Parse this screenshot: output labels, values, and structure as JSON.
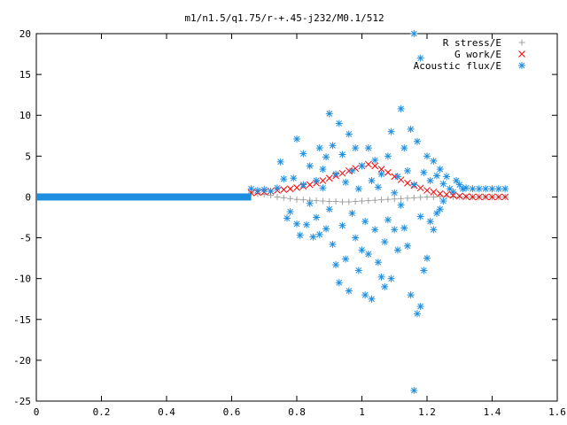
{
  "chart_data": {
    "type": "scatter",
    "title": "m1/n1.5/q1.75/r-+.45-j232/M0.1/512",
    "xlim": [
      0,
      1.6
    ],
    "ylim": [
      -25,
      20
    ],
    "x_ticks": [
      "0",
      "0.2",
      "0.4",
      "0.6",
      "0.8",
      "1",
      "1.2",
      "1.4",
      "1.6"
    ],
    "y_ticks": [
      "-25",
      "-20",
      "-15",
      "-10",
      "-5",
      "0",
      "5",
      "10",
      "15",
      "20"
    ],
    "x_tick_values": [
      0,
      0.2,
      0.4,
      0.6,
      0.8,
      1.0,
      1.2,
      1.4,
      1.6
    ],
    "y_tick_values": [
      -25,
      -20,
      -15,
      -10,
      -5,
      0,
      5,
      10,
      15,
      20
    ],
    "grid": false,
    "legend_position": "top-right",
    "series": [
      {
        "name": "R stress/E",
        "marker": "plus",
        "color": "#a0a0a0",
        "points": [
          [
            0.66,
            0.5
          ],
          [
            0.68,
            0.4
          ],
          [
            0.7,
            0.3
          ],
          [
            0.72,
            0.2
          ],
          [
            0.74,
            0.0
          ],
          [
            0.76,
            -0.1
          ],
          [
            0.78,
            -0.2
          ],
          [
            0.8,
            -0.3
          ],
          [
            0.82,
            -0.35
          ],
          [
            0.84,
            -0.4
          ],
          [
            0.86,
            -0.45
          ],
          [
            0.88,
            -0.5
          ],
          [
            0.9,
            -0.55
          ],
          [
            0.92,
            -0.55
          ],
          [
            0.94,
            -0.6
          ],
          [
            0.96,
            -0.6
          ],
          [
            0.98,
            -0.55
          ],
          [
            1.0,
            -0.5
          ],
          [
            1.02,
            -0.45
          ],
          [
            1.04,
            -0.4
          ],
          [
            1.06,
            -0.35
          ],
          [
            1.08,
            -0.3
          ],
          [
            1.1,
            -0.25
          ],
          [
            1.12,
            -0.2
          ],
          [
            1.14,
            -0.15
          ],
          [
            1.16,
            -0.1
          ],
          [
            1.18,
            -0.05
          ],
          [
            1.2,
            0.0
          ],
          [
            1.22,
            0.0
          ],
          [
            1.24,
            0.05
          ],
          [
            1.26,
            0.05
          ],
          [
            1.28,
            0.0
          ],
          [
            1.3,
            0.0
          ],
          [
            1.32,
            0.0
          ],
          [
            1.34,
            0.0
          ],
          [
            1.36,
            0.0
          ],
          [
            1.38,
            0.0
          ],
          [
            1.4,
            0.0
          ],
          [
            1.42,
            0.0
          ],
          [
            1.44,
            0.0
          ]
        ]
      },
      {
        "name": "G work/E",
        "marker": "cross",
        "color": "#ff0000",
        "points": [
          [
            0.66,
            0.5
          ],
          [
            0.68,
            0.55
          ],
          [
            0.7,
            0.6
          ],
          [
            0.72,
            0.7
          ],
          [
            0.74,
            0.8
          ],
          [
            0.76,
            0.9
          ],
          [
            0.78,
            1.0
          ],
          [
            0.8,
            1.15
          ],
          [
            0.82,
            1.3
          ],
          [
            0.84,
            1.5
          ],
          [
            0.86,
            1.7
          ],
          [
            0.88,
            2.0
          ],
          [
            0.9,
            2.3
          ],
          [
            0.92,
            2.6
          ],
          [
            0.94,
            2.9
          ],
          [
            0.96,
            3.2
          ],
          [
            0.98,
            3.5
          ],
          [
            1.0,
            3.8
          ],
          [
            1.02,
            4.0
          ],
          [
            1.04,
            3.8
          ],
          [
            1.06,
            3.4
          ],
          [
            1.08,
            3.0
          ],
          [
            1.1,
            2.5
          ],
          [
            1.12,
            2.1
          ],
          [
            1.14,
            1.7
          ],
          [
            1.16,
            1.4
          ],
          [
            1.18,
            1.1
          ],
          [
            1.2,
            0.8
          ],
          [
            1.22,
            0.6
          ],
          [
            1.24,
            0.4
          ],
          [
            1.26,
            0.3
          ],
          [
            1.28,
            0.2
          ],
          [
            1.3,
            0.1
          ],
          [
            1.32,
            0.05
          ],
          [
            1.34,
            0.0
          ],
          [
            1.36,
            0.0
          ],
          [
            1.38,
            0.0
          ],
          [
            1.4,
            0.0
          ],
          [
            1.42,
            0.0
          ],
          [
            1.44,
            0.0
          ]
        ]
      },
      {
        "name": "Acoustic flux/E",
        "marker": "star",
        "color": "#1e8ee0",
        "points": [
          [
            0.66,
            1.0
          ],
          [
            0.68,
            0.8
          ],
          [
            0.7,
            0.9
          ],
          [
            0.72,
            0.7
          ],
          [
            0.74,
            1.1
          ],
          [
            0.75,
            4.3
          ],
          [
            0.76,
            2.2
          ],
          [
            0.77,
            -2.6
          ],
          [
            0.78,
            -1.8
          ],
          [
            0.79,
            2.3
          ],
          [
            0.8,
            7.1
          ],
          [
            0.8,
            -3.3
          ],
          [
            0.81,
            -4.7
          ],
          [
            0.82,
            1.5
          ],
          [
            0.82,
            5.3
          ],
          [
            0.83,
            -3.4
          ],
          [
            0.84,
            -0.8
          ],
          [
            0.84,
            3.8
          ],
          [
            0.85,
            -4.9
          ],
          [
            0.86,
            2.0
          ],
          [
            0.86,
            -2.5
          ],
          [
            0.87,
            6.0
          ],
          [
            0.87,
            -4.6
          ],
          [
            0.88,
            3.4
          ],
          [
            0.88,
            1.1
          ],
          [
            0.89,
            -3.9
          ],
          [
            0.89,
            4.9
          ],
          [
            0.9,
            10.2
          ],
          [
            0.9,
            -1.5
          ],
          [
            0.91,
            -5.8
          ],
          [
            0.91,
            6.3
          ],
          [
            0.92,
            2.8
          ],
          [
            0.92,
            -8.3
          ],
          [
            0.93,
            9.0
          ],
          [
            0.93,
            -10.5
          ],
          [
            0.94,
            -3.5
          ],
          [
            0.94,
            5.2
          ],
          [
            0.95,
            -7.6
          ],
          [
            0.95,
            1.8
          ],
          [
            0.96,
            7.7
          ],
          [
            0.96,
            -11.5
          ],
          [
            0.97,
            -2.0
          ],
          [
            0.97,
            3.2
          ],
          [
            0.98,
            -5.0
          ],
          [
            0.98,
            6.0
          ],
          [
            0.99,
            -9.0
          ],
          [
            0.99,
            1.0
          ],
          [
            1.0,
            -6.5
          ],
          [
            1.0,
            3.8
          ],
          [
            1.01,
            -12.0
          ],
          [
            1.01,
            -3.0
          ],
          [
            1.02,
            6.0
          ],
          [
            1.02,
            -7.0
          ],
          [
            1.03,
            2.0
          ],
          [
            1.03,
            -12.5
          ],
          [
            1.04,
            -4.0
          ],
          [
            1.04,
            4.5
          ],
          [
            1.05,
            -8.0
          ],
          [
            1.05,
            1.2
          ],
          [
            1.06,
            -9.8
          ],
          [
            1.06,
            2.8
          ],
          [
            1.07,
            -11.0
          ],
          [
            1.07,
            -5.5
          ],
          [
            1.08,
            5.0
          ],
          [
            1.08,
            -2.8
          ],
          [
            1.09,
            8.0
          ],
          [
            1.09,
            -10.0
          ],
          [
            1.1,
            -4.0
          ],
          [
            1.1,
            0.5
          ],
          [
            1.11,
            -6.5
          ],
          [
            1.11,
            2.5
          ],
          [
            1.12,
            10.8
          ],
          [
            1.12,
            -1.0
          ],
          [
            1.13,
            6.0
          ],
          [
            1.13,
            -3.8
          ],
          [
            1.14,
            3.2
          ],
          [
            1.14,
            -6.0
          ],
          [
            1.15,
            8.3
          ],
          [
            1.15,
            -12.0
          ],
          [
            1.16,
            -23.7
          ],
          [
            1.16,
            20.0
          ],
          [
            1.16,
            1.5
          ],
          [
            1.17,
            -14.3
          ],
          [
            1.17,
            6.8
          ],
          [
            1.18,
            -13.4
          ],
          [
            1.18,
            17.0
          ],
          [
            1.18,
            -2.4
          ],
          [
            1.19,
            3.0
          ],
          [
            1.19,
            -9.0
          ],
          [
            1.2,
            -7.5
          ],
          [
            1.2,
            5.0
          ],
          [
            1.21,
            2.0
          ],
          [
            1.21,
            -3.0
          ],
          [
            1.22,
            -4.0
          ],
          [
            1.22,
            4.4
          ],
          [
            1.23,
            2.6
          ],
          [
            1.23,
            -2.0
          ],
          [
            1.24,
            3.4
          ],
          [
            1.24,
            -1.5
          ],
          [
            1.25,
            1.6
          ],
          [
            1.25,
            -0.5
          ],
          [
            1.26,
            2.5
          ],
          [
            1.27,
            1.0
          ],
          [
            1.28,
            0.6
          ],
          [
            1.29,
            2.0
          ],
          [
            1.3,
            1.5
          ],
          [
            1.31,
            1.0
          ],
          [
            1.32,
            1.1
          ],
          [
            1.34,
            1.0
          ],
          [
            1.36,
            1.0
          ],
          [
            1.38,
            1.0
          ],
          [
            1.4,
            1.0
          ],
          [
            1.42,
            1.0
          ],
          [
            1.44,
            1.0
          ]
        ],
        "flat_segment": {
          "x_from": 0.0,
          "x_to": 0.66,
          "y": 0.0
        }
      }
    ]
  }
}
